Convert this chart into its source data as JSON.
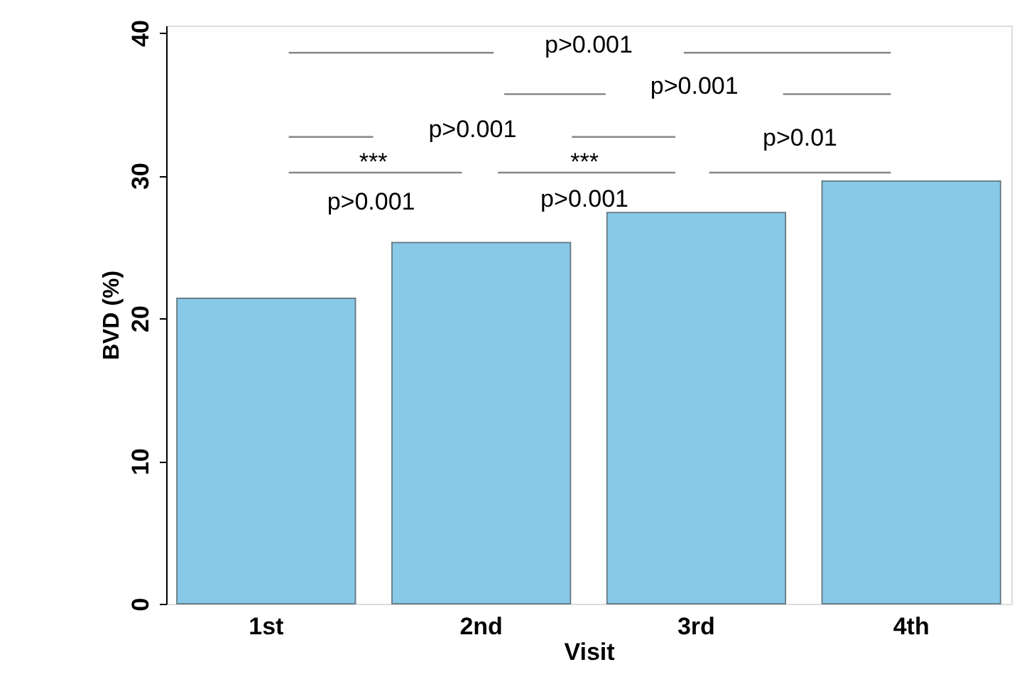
{
  "chart_data": {
    "type": "bar",
    "xlabel": "Visit",
    "ylabel": "BVD (%)",
    "categories": [
      "1st",
      "2nd",
      "3rd",
      "4th"
    ],
    "values": [
      21.4,
      25.3,
      27.4,
      29.6
    ],
    "color": "#88c9e8",
    "ylim": [
      0,
      40.5
    ],
    "yticks": [
      0,
      10,
      20,
      30,
      40
    ],
    "grid": false,
    "annotations": [
      "p>0.001",
      "p>0.001",
      "p>0.001",
      "p>0.01",
      "***",
      "p>0.001",
      "***",
      "p>0.001"
    ]
  }
}
